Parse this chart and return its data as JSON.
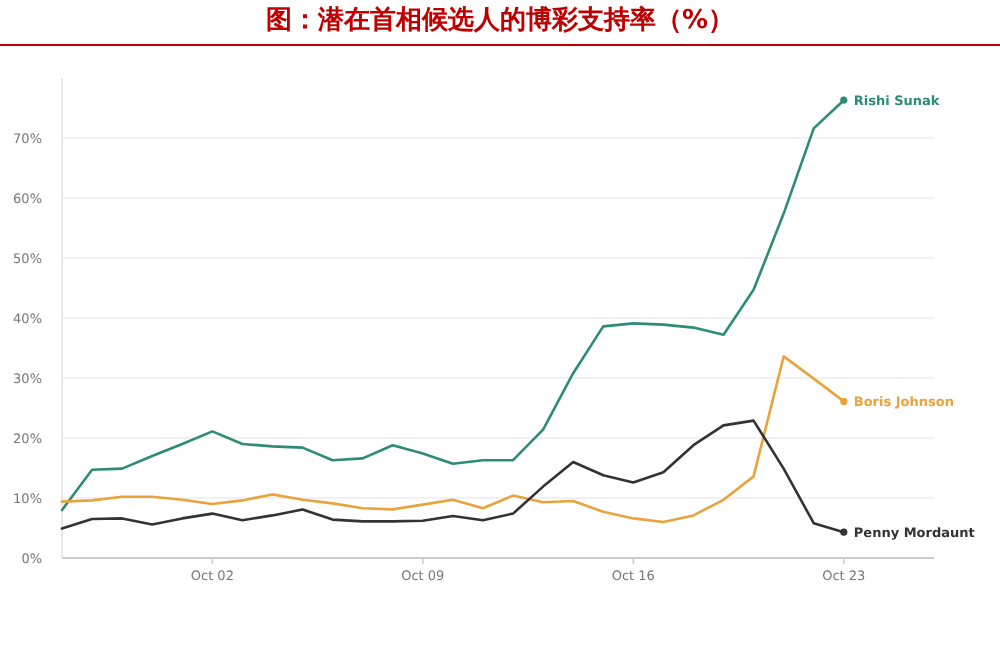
{
  "chart_data": {
    "type": "line",
    "title": "图：潜在首相候选人的博彩支持率（%）",
    "x": [
      "--09-27",
      "--09-28",
      "--09-29",
      "--09-30",
      "--10-01",
      "--10-02",
      "--10-03",
      "--10-04",
      "--10-05",
      "--10-06",
      "--10-07",
      "--10-08",
      "--10-09",
      "--10-10",
      "--10-11",
      "--10-12",
      "--10-13",
      "--10-14",
      "--10-15",
      "--10-16",
      "--10-17",
      "--10-18",
      "--10-19",
      "--10-20",
      "--10-21",
      "--10-22",
      "--10-23"
    ],
    "series": [
      {
        "name": "Rishi Sunak",
        "color": "#2e8b77",
        "values": [
          8.0,
          14.7,
          14.9,
          17.0,
          19.0,
          21.1,
          19.0,
          18.6,
          18.4,
          16.3,
          16.6,
          18.8,
          17.4,
          15.7,
          16.3,
          16.3,
          21.4,
          30.8,
          38.6,
          39.1,
          38.9,
          38.4,
          37.2,
          44.7,
          57.4,
          71.6,
          76.3
        ]
      },
      {
        "name": "Boris Johnson",
        "color": "#e8a33d",
        "values": [
          9.4,
          9.6,
          10.2,
          10.2,
          9.7,
          9.0,
          9.6,
          10.6,
          9.7,
          9.1,
          8.3,
          8.1,
          8.9,
          9.7,
          8.3,
          10.4,
          9.3,
          9.5,
          7.7,
          6.6,
          6.0,
          7.1,
          9.7,
          13.6,
          33.6,
          29.9,
          26.1
        ]
      },
      {
        "name": "Penny Mordaunt",
        "color": "#333333",
        "values": [
          4.9,
          6.5,
          6.6,
          5.6,
          6.6,
          7.4,
          6.3,
          7.1,
          8.1,
          6.4,
          6.1,
          6.1,
          6.2,
          7.0,
          6.3,
          7.4,
          11.9,
          16.0,
          13.8,
          12.6,
          14.3,
          18.8,
          22.1,
          22.9,
          14.9,
          5.8,
          4.3
        ]
      }
    ],
    "xlim": [
      "--09-27",
      "--10-26"
    ],
    "xticks": [
      {
        "value": "--10-02",
        "label": "Oct 02"
      },
      {
        "value": "--10-09",
        "label": "Oct 09"
      },
      {
        "value": "--10-16",
        "label": "Oct 16"
      },
      {
        "value": "--10-23",
        "label": "Oct 23"
      }
    ],
    "ylim": [
      0,
      80
    ],
    "yticks": [
      {
        "value": 0,
        "label": "0%"
      },
      {
        "value": 10,
        "label": "10%"
      },
      {
        "value": 20,
        "label": "20%"
      },
      {
        "value": 30,
        "label": "30%"
      },
      {
        "value": 40,
        "label": "40%"
      },
      {
        "value": 50,
        "label": "50%"
      },
      {
        "value": 60,
        "label": "60%"
      },
      {
        "value": 70,
        "label": "70%"
      }
    ],
    "grid": "y"
  }
}
